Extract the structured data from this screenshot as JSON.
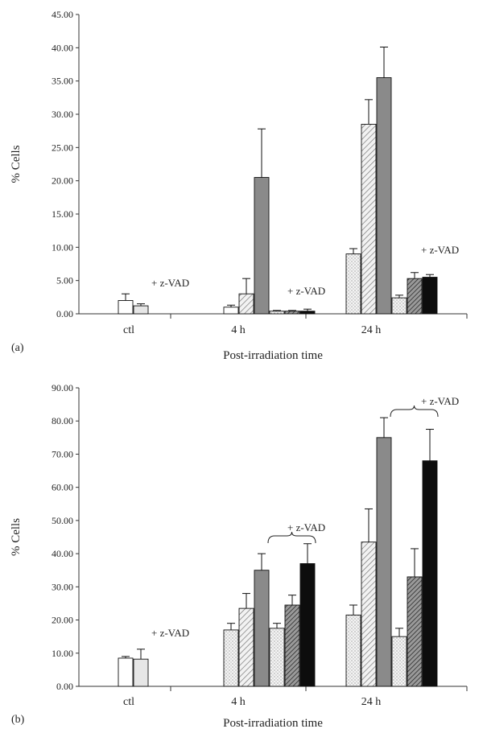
{
  "chart_data": [
    {
      "panel_label": "(a)",
      "type": "bar",
      "xlabel": "Post-irradiation time",
      "ylabel": "% Cells",
      "ylim": [
        0,
        45
      ],
      "yticks": [
        "0.00",
        "5.00",
        "10.00",
        "15.00",
        "20.00",
        "25.00",
        "30.00",
        "35.00",
        "40.00",
        "45.00"
      ],
      "categories": [
        "ctl",
        "4 h",
        "24 h"
      ],
      "annotation": "+ z-VAD",
      "groups": [
        {
          "category": "ctl",
          "bars": [
            {
              "fill": "white",
              "value": 2.0,
              "error": 1.0
            },
            {
              "fill": "light",
              "value": 1.2,
              "error": 0.3
            }
          ]
        },
        {
          "category": "4 h",
          "bars": [
            {
              "fill": "white",
              "value": 1.0,
              "error": 0.3
            },
            {
              "fill": "hatch",
              "value": 3.0,
              "error": 2.3
            },
            {
              "fill": "gray",
              "value": 20.5,
              "error": 7.3
            },
            {
              "fill": "dots",
              "value": 0.4,
              "error": 0.1
            },
            {
              "fill": "dhatch",
              "value": 0.4,
              "error": 0.1
            },
            {
              "fill": "black",
              "value": 0.4,
              "error": 0.3
            }
          ]
        },
        {
          "category": "24 h",
          "bars": [
            {
              "fill": "dots",
              "value": 9.0,
              "error": 0.8
            },
            {
              "fill": "hatch",
              "value": 28.5,
              "error": 3.7
            },
            {
              "fill": "gray",
              "value": 35.5,
              "error": 4.6
            },
            {
              "fill": "dots",
              "value": 2.4,
              "error": 0.4
            },
            {
              "fill": "dhatch",
              "value": 5.3,
              "error": 0.9
            },
            {
              "fill": "black",
              "value": 5.5,
              "error": 0.4
            }
          ]
        }
      ]
    },
    {
      "panel_label": "(b)",
      "type": "bar",
      "xlabel": "Post-irradiation time",
      "ylabel": "% Cells",
      "ylim": [
        0,
        90
      ],
      "yticks": [
        "0.00",
        "10.00",
        "20.00",
        "30.00",
        "40.00",
        "50.00",
        "60.00",
        "70.00",
        "80.00",
        "90.00"
      ],
      "categories": [
        "ctl",
        "4 h",
        "24 h"
      ],
      "annotation": "+ z-VAD",
      "groups": [
        {
          "category": "ctl",
          "bars": [
            {
              "fill": "white",
              "value": 8.5,
              "error": 0.5
            },
            {
              "fill": "light",
              "value": 8.2,
              "error": 3.0
            }
          ]
        },
        {
          "category": "4 h",
          "bars": [
            {
              "fill": "dots",
              "value": 17.0,
              "error": 2.0
            },
            {
              "fill": "hatch",
              "value": 23.5,
              "error": 4.5
            },
            {
              "fill": "gray",
              "value": 35.0,
              "error": 5.0
            },
            {
              "fill": "dots",
              "value": 17.5,
              "error": 1.5
            },
            {
              "fill": "dhatch",
              "value": 24.5,
              "error": 3.0
            },
            {
              "fill": "black",
              "value": 37.0,
              "error": 6.0
            }
          ]
        },
        {
          "category": "24 h",
          "bars": [
            {
              "fill": "dots",
              "value": 21.5,
              "error": 3.0
            },
            {
              "fill": "hatch",
              "value": 43.5,
              "error": 10.0
            },
            {
              "fill": "gray",
              "value": 75.0,
              "error": 6.0
            },
            {
              "fill": "dots",
              "value": 15.0,
              "error": 2.5
            },
            {
              "fill": "dhatch",
              "value": 33.0,
              "error": 8.5
            },
            {
              "fill": "black",
              "value": 68.0,
              "error": 9.5
            }
          ]
        }
      ]
    }
  ]
}
